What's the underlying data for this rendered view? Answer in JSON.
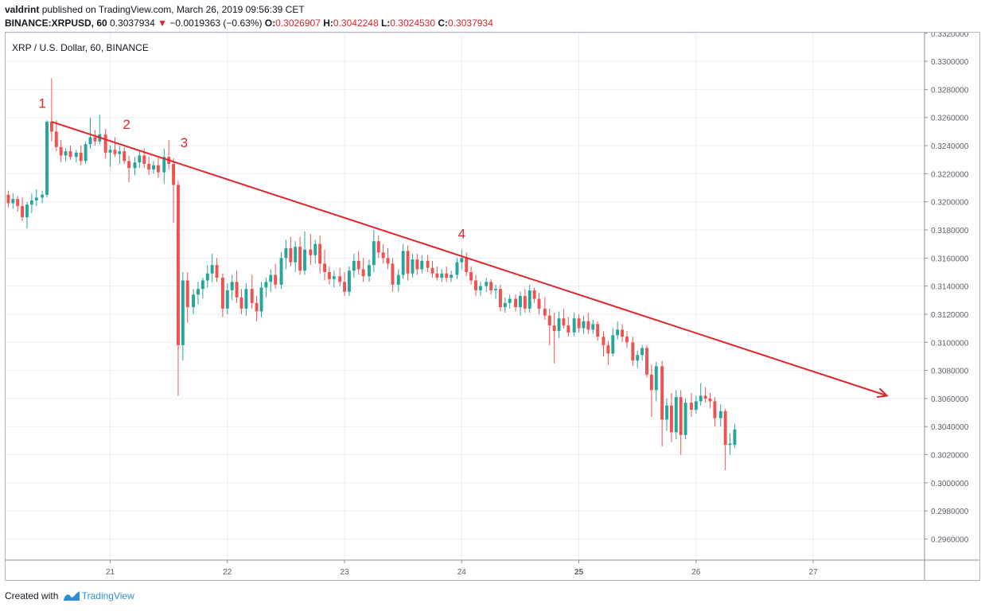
{
  "header": {
    "author": "valdrint",
    "published_text": "published on TradingView.com, March 26, 2019 09:56:39 CET",
    "symbol": "BINANCE:XRPUSD, 60",
    "last": "0.3037934",
    "change_arrow": "▼",
    "change": "−0.0019363 (−0.63%)",
    "o_label": "O:",
    "o_value": "0.3026907",
    "h_label": "H:",
    "h_value": "0.3042248",
    "l_label": "L:",
    "l_value": "0.3024530",
    "c_label": "C:",
    "c_value": "0.3037934"
  },
  "footer": {
    "created_with": "Created with",
    "brand": "TradingView",
    "logo_icon": "tradingview-logo-icon"
  },
  "colors": {
    "up": "#26a69a",
    "down": "#ef5350",
    "trendline": "#e0252b",
    "grid": "#e9eef4",
    "axis": "#8a8f99",
    "brand": "#2b8fd6"
  },
  "chart_data": {
    "type": "candlestick",
    "title": "XRP / U.S. Dollar, 60, BINANCE",
    "x_ticks": [
      "21",
      "22",
      "23",
      "24",
      "25",
      "26",
      "27"
    ],
    "bold_x_ticks": [
      "25"
    ],
    "y_ticks": [
      "0.3320000",
      "0.3300000",
      "0.3280000",
      "0.3260000",
      "0.3240000",
      "0.3220000",
      "0.3200000",
      "0.3180000",
      "0.3160000",
      "0.3140000",
      "0.3120000",
      "0.3100000",
      "0.3080000",
      "0.3060000",
      "0.3040000",
      "0.3020000",
      "0.3000000",
      "0.2980000",
      "0.2960000"
    ],
    "ylim": [
      0.2945,
      0.3321
    ],
    "xlim": [
      20.1,
      27.95
    ],
    "grid": true,
    "candle_width_days": 0.0267,
    "candles": [
      {
        "t": 20.13,
        "o": 0.3205,
        "h": 0.3208,
        "l": 0.3196,
        "c": 0.3199
      },
      {
        "t": 20.17,
        "o": 0.3199,
        "h": 0.3206,
        "l": 0.3195,
        "c": 0.3202
      },
      {
        "t": 20.21,
        "o": 0.3202,
        "h": 0.3204,
        "l": 0.3193,
        "c": 0.3197
      },
      {
        "t": 20.25,
        "o": 0.3197,
        "h": 0.3203,
        "l": 0.3186,
        "c": 0.3189
      },
      {
        "t": 20.29,
        "o": 0.3189,
        "h": 0.32,
        "l": 0.3181,
        "c": 0.3198
      },
      {
        "t": 20.33,
        "o": 0.3198,
        "h": 0.3206,
        "l": 0.3192,
        "c": 0.3201
      },
      {
        "t": 20.37,
        "o": 0.3201,
        "h": 0.3209,
        "l": 0.3197,
        "c": 0.3203
      },
      {
        "t": 20.42,
        "o": 0.3203,
        "h": 0.3208,
        "l": 0.3199,
        "c": 0.3205
      },
      {
        "t": 20.46,
        "o": 0.3205,
        "h": 0.3258,
        "l": 0.3203,
        "c": 0.3257
      },
      {
        "t": 20.5,
        "o": 0.3257,
        "h": 0.3288,
        "l": 0.3243,
        "c": 0.325
      },
      {
        "t": 20.54,
        "o": 0.325,
        "h": 0.3258,
        "l": 0.3236,
        "c": 0.3239
      },
      {
        "t": 20.58,
        "o": 0.3239,
        "h": 0.3244,
        "l": 0.3228,
        "c": 0.3233
      },
      {
        "t": 20.62,
        "o": 0.3233,
        "h": 0.3238,
        "l": 0.3229,
        "c": 0.3236
      },
      {
        "t": 20.66,
        "o": 0.3236,
        "h": 0.324,
        "l": 0.323,
        "c": 0.3232
      },
      {
        "t": 20.71,
        "o": 0.3232,
        "h": 0.3237,
        "l": 0.3228,
        "c": 0.3235
      },
      {
        "t": 20.75,
        "o": 0.3235,
        "h": 0.324,
        "l": 0.3226,
        "c": 0.3229
      },
      {
        "t": 20.79,
        "o": 0.3229,
        "h": 0.3243,
        "l": 0.3227,
        "c": 0.3241
      },
      {
        "t": 20.83,
        "o": 0.3241,
        "h": 0.326,
        "l": 0.3238,
        "c": 0.3246
      },
      {
        "t": 20.87,
        "o": 0.3246,
        "h": 0.3251,
        "l": 0.324,
        "c": 0.3243
      },
      {
        "t": 20.91,
        "o": 0.3243,
        "h": 0.3262,
        "l": 0.3241,
        "c": 0.3248
      },
      {
        "t": 20.96,
        "o": 0.3248,
        "h": 0.3252,
        "l": 0.3231,
        "c": 0.3235
      },
      {
        "t": 21.0,
        "o": 0.3235,
        "h": 0.324,
        "l": 0.3225,
        "c": 0.3237
      },
      {
        "t": 21.04,
        "o": 0.3237,
        "h": 0.3246,
        "l": 0.3232,
        "c": 0.3234
      },
      {
        "t": 21.08,
        "o": 0.3234,
        "h": 0.324,
        "l": 0.3227,
        "c": 0.3236
      },
      {
        "t": 21.12,
        "o": 0.3236,
        "h": 0.3239,
        "l": 0.3227,
        "c": 0.3229
      },
      {
        "t": 21.16,
        "o": 0.3229,
        "h": 0.3233,
        "l": 0.3214,
        "c": 0.3224
      },
      {
        "t": 21.21,
        "o": 0.3224,
        "h": 0.3232,
        "l": 0.3219,
        "c": 0.3228
      },
      {
        "t": 21.25,
        "o": 0.3228,
        "h": 0.3236,
        "l": 0.3224,
        "c": 0.3233
      },
      {
        "t": 21.29,
        "o": 0.3233,
        "h": 0.3238,
        "l": 0.3224,
        "c": 0.3227
      },
      {
        "t": 21.33,
        "o": 0.3227,
        "h": 0.3232,
        "l": 0.3219,
        "c": 0.3223
      },
      {
        "t": 21.37,
        "o": 0.3223,
        "h": 0.3229,
        "l": 0.322,
        "c": 0.3226
      },
      {
        "t": 21.41,
        "o": 0.3226,
        "h": 0.3232,
        "l": 0.3217,
        "c": 0.3221
      },
      {
        "t": 21.46,
        "o": 0.3221,
        "h": 0.3238,
        "l": 0.3213,
        "c": 0.3232
      },
      {
        "t": 21.5,
        "o": 0.3232,
        "h": 0.3244,
        "l": 0.3223,
        "c": 0.3227
      },
      {
        "t": 21.54,
        "o": 0.3227,
        "h": 0.3231,
        "l": 0.3185,
        "c": 0.3212
      },
      {
        "t": 21.58,
        "o": 0.3212,
        "h": 0.3215,
        "l": 0.3062,
        "c": 0.3098
      },
      {
        "t": 21.62,
        "o": 0.3098,
        "h": 0.315,
        "l": 0.3087,
        "c": 0.3144
      },
      {
        "t": 21.66,
        "o": 0.3144,
        "h": 0.315,
        "l": 0.3114,
        "c": 0.3125
      },
      {
        "t": 21.71,
        "o": 0.3125,
        "h": 0.3138,
        "l": 0.312,
        "c": 0.3134
      },
      {
        "t": 21.75,
        "o": 0.3134,
        "h": 0.3143,
        "l": 0.3127,
        "c": 0.3138
      },
      {
        "t": 21.79,
        "o": 0.3138,
        "h": 0.3146,
        "l": 0.3131,
        "c": 0.3144
      },
      {
        "t": 21.83,
        "o": 0.3144,
        "h": 0.3155,
        "l": 0.3139,
        "c": 0.3149
      },
      {
        "t": 21.87,
        "o": 0.3149,
        "h": 0.3163,
        "l": 0.3143,
        "c": 0.3155
      },
      {
        "t": 21.91,
        "o": 0.3155,
        "h": 0.316,
        "l": 0.3143,
        "c": 0.3146
      },
      {
        "t": 21.96,
        "o": 0.3146,
        "h": 0.3149,
        "l": 0.3118,
        "c": 0.3124
      },
      {
        "t": 22.0,
        "o": 0.3124,
        "h": 0.3142,
        "l": 0.312,
        "c": 0.3137
      },
      {
        "t": 22.04,
        "o": 0.3137,
        "h": 0.3148,
        "l": 0.313,
        "c": 0.3143
      },
      {
        "t": 22.08,
        "o": 0.3143,
        "h": 0.3151,
        "l": 0.3128,
        "c": 0.3132
      },
      {
        "t": 22.12,
        "o": 0.3132,
        "h": 0.3138,
        "l": 0.312,
        "c": 0.3124
      },
      {
        "t": 22.16,
        "o": 0.3124,
        "h": 0.3142,
        "l": 0.3119,
        "c": 0.3138
      },
      {
        "t": 22.21,
        "o": 0.3138,
        "h": 0.3148,
        "l": 0.3124,
        "c": 0.3128
      },
      {
        "t": 22.25,
        "o": 0.3128,
        "h": 0.3133,
        "l": 0.3115,
        "c": 0.3122
      },
      {
        "t": 22.29,
        "o": 0.3122,
        "h": 0.3143,
        "l": 0.3118,
        "c": 0.3139
      },
      {
        "t": 22.33,
        "o": 0.3139,
        "h": 0.3146,
        "l": 0.3132,
        "c": 0.3143
      },
      {
        "t": 22.37,
        "o": 0.3143,
        "h": 0.3152,
        "l": 0.3136,
        "c": 0.3148
      },
      {
        "t": 22.41,
        "o": 0.3148,
        "h": 0.3156,
        "l": 0.3138,
        "c": 0.3141
      },
      {
        "t": 22.46,
        "o": 0.3141,
        "h": 0.3164,
        "l": 0.3138,
        "c": 0.316
      },
      {
        "t": 22.5,
        "o": 0.316,
        "h": 0.3173,
        "l": 0.3152,
        "c": 0.3167
      },
      {
        "t": 22.54,
        "o": 0.3167,
        "h": 0.3175,
        "l": 0.3154,
        "c": 0.3157
      },
      {
        "t": 22.58,
        "o": 0.3157,
        "h": 0.3172,
        "l": 0.315,
        "c": 0.3168
      },
      {
        "t": 22.62,
        "o": 0.3168,
        "h": 0.3175,
        "l": 0.3148,
        "c": 0.3151
      },
      {
        "t": 22.66,
        "o": 0.3151,
        "h": 0.3179,
        "l": 0.3148,
        "c": 0.3166
      },
      {
        "t": 22.71,
        "o": 0.3166,
        "h": 0.3177,
        "l": 0.3155,
        "c": 0.3162
      },
      {
        "t": 22.75,
        "o": 0.3162,
        "h": 0.3173,
        "l": 0.3156,
        "c": 0.317
      },
      {
        "t": 22.79,
        "o": 0.317,
        "h": 0.3176,
        "l": 0.3149,
        "c": 0.3156
      },
      {
        "t": 22.83,
        "o": 0.3156,
        "h": 0.3166,
        "l": 0.3144,
        "c": 0.315
      },
      {
        "t": 22.87,
        "o": 0.315,
        "h": 0.3154,
        "l": 0.3141,
        "c": 0.3145
      },
      {
        "t": 22.91,
        "o": 0.3145,
        "h": 0.3151,
        "l": 0.3139,
        "c": 0.3147
      },
      {
        "t": 22.96,
        "o": 0.3147,
        "h": 0.3153,
        "l": 0.314,
        "c": 0.3143
      },
      {
        "t": 23.0,
        "o": 0.3143,
        "h": 0.315,
        "l": 0.3133,
        "c": 0.3136
      },
      {
        "t": 23.04,
        "o": 0.3136,
        "h": 0.3154,
        "l": 0.3133,
        "c": 0.3151
      },
      {
        "t": 23.08,
        "o": 0.3151,
        "h": 0.3163,
        "l": 0.3146,
        "c": 0.3158
      },
      {
        "t": 23.12,
        "o": 0.3158,
        "h": 0.3165,
        "l": 0.3148,
        "c": 0.3152
      },
      {
        "t": 23.16,
        "o": 0.3152,
        "h": 0.316,
        "l": 0.3143,
        "c": 0.3147
      },
      {
        "t": 23.21,
        "o": 0.3147,
        "h": 0.3159,
        "l": 0.3143,
        "c": 0.3155
      },
      {
        "t": 23.25,
        "o": 0.3155,
        "h": 0.318,
        "l": 0.315,
        "c": 0.3172
      },
      {
        "t": 23.29,
        "o": 0.3172,
        "h": 0.3176,
        "l": 0.316,
        "c": 0.3164
      },
      {
        "t": 23.33,
        "o": 0.3164,
        "h": 0.317,
        "l": 0.3156,
        "c": 0.316
      },
      {
        "t": 23.37,
        "o": 0.316,
        "h": 0.3167,
        "l": 0.3152,
        "c": 0.3156
      },
      {
        "t": 23.41,
        "o": 0.3156,
        "h": 0.316,
        "l": 0.3136,
        "c": 0.3141
      },
      {
        "t": 23.46,
        "o": 0.3141,
        "h": 0.3152,
        "l": 0.3136,
        "c": 0.3148
      },
      {
        "t": 23.5,
        "o": 0.3148,
        "h": 0.317,
        "l": 0.3145,
        "c": 0.3165
      },
      {
        "t": 23.54,
        "o": 0.3165,
        "h": 0.3169,
        "l": 0.3144,
        "c": 0.3149
      },
      {
        "t": 23.58,
        "o": 0.3149,
        "h": 0.3163,
        "l": 0.3146,
        "c": 0.3159
      },
      {
        "t": 23.62,
        "o": 0.3159,
        "h": 0.3163,
        "l": 0.3148,
        "c": 0.3152
      },
      {
        "t": 23.66,
        "o": 0.3152,
        "h": 0.3162,
        "l": 0.3149,
        "c": 0.3158
      },
      {
        "t": 23.71,
        "o": 0.3158,
        "h": 0.3162,
        "l": 0.315,
        "c": 0.3153
      },
      {
        "t": 23.75,
        "o": 0.3153,
        "h": 0.3158,
        "l": 0.3146,
        "c": 0.3149
      },
      {
        "t": 23.79,
        "o": 0.3149,
        "h": 0.3154,
        "l": 0.3144,
        "c": 0.3146
      },
      {
        "t": 23.83,
        "o": 0.3146,
        "h": 0.3152,
        "l": 0.3143,
        "c": 0.3149
      },
      {
        "t": 23.87,
        "o": 0.3149,
        "h": 0.3154,
        "l": 0.3143,
        "c": 0.3146
      },
      {
        "t": 23.91,
        "o": 0.3146,
        "h": 0.3151,
        "l": 0.3143,
        "c": 0.3148
      },
      {
        "t": 23.96,
        "o": 0.3148,
        "h": 0.316,
        "l": 0.3145,
        "c": 0.3157
      },
      {
        "t": 24.0,
        "o": 0.3157,
        "h": 0.3166,
        "l": 0.3152,
        "c": 0.316
      },
      {
        "t": 24.04,
        "o": 0.316,
        "h": 0.3164,
        "l": 0.3147,
        "c": 0.315
      },
      {
        "t": 24.08,
        "o": 0.315,
        "h": 0.3154,
        "l": 0.3141,
        "c": 0.3144
      },
      {
        "t": 24.12,
        "o": 0.3144,
        "h": 0.3148,
        "l": 0.3133,
        "c": 0.3137
      },
      {
        "t": 24.16,
        "o": 0.3137,
        "h": 0.3143,
        "l": 0.3133,
        "c": 0.314
      },
      {
        "t": 24.21,
        "o": 0.314,
        "h": 0.3146,
        "l": 0.3136,
        "c": 0.3143
      },
      {
        "t": 24.25,
        "o": 0.3143,
        "h": 0.3145,
        "l": 0.3134,
        "c": 0.3137
      },
      {
        "t": 24.29,
        "o": 0.3137,
        "h": 0.3141,
        "l": 0.3131,
        "c": 0.3138
      },
      {
        "t": 24.33,
        "o": 0.3138,
        "h": 0.3141,
        "l": 0.3122,
        "c": 0.3125
      },
      {
        "t": 24.37,
        "o": 0.3125,
        "h": 0.3132,
        "l": 0.3121,
        "c": 0.3128
      },
      {
        "t": 24.41,
        "o": 0.3128,
        "h": 0.3134,
        "l": 0.3124,
        "c": 0.3131
      },
      {
        "t": 24.46,
        "o": 0.3131,
        "h": 0.3134,
        "l": 0.3122,
        "c": 0.3125
      },
      {
        "t": 24.5,
        "o": 0.3125,
        "h": 0.3136,
        "l": 0.3119,
        "c": 0.3133
      },
      {
        "t": 24.54,
        "o": 0.3133,
        "h": 0.3138,
        "l": 0.3121,
        "c": 0.3124
      },
      {
        "t": 24.58,
        "o": 0.3124,
        "h": 0.3141,
        "l": 0.3121,
        "c": 0.3137
      },
      {
        "t": 24.62,
        "o": 0.3137,
        "h": 0.3139,
        "l": 0.3128,
        "c": 0.3131
      },
      {
        "t": 24.66,
        "o": 0.3131,
        "h": 0.3135,
        "l": 0.312,
        "c": 0.3124
      },
      {
        "t": 24.71,
        "o": 0.3124,
        "h": 0.3132,
        "l": 0.3116,
        "c": 0.3119
      },
      {
        "t": 24.75,
        "o": 0.3119,
        "h": 0.3124,
        "l": 0.3098,
        "c": 0.3112
      },
      {
        "t": 24.79,
        "o": 0.3112,
        "h": 0.3121,
        "l": 0.3085,
        "c": 0.3108
      },
      {
        "t": 24.83,
        "o": 0.3108,
        "h": 0.3122,
        "l": 0.3103,
        "c": 0.3117
      },
      {
        "t": 24.87,
        "o": 0.3117,
        "h": 0.3124,
        "l": 0.311,
        "c": 0.3112
      },
      {
        "t": 24.91,
        "o": 0.3112,
        "h": 0.3118,
        "l": 0.3104,
        "c": 0.3107
      },
      {
        "t": 24.96,
        "o": 0.3107,
        "h": 0.3121,
        "l": 0.3104,
        "c": 0.3117
      },
      {
        "t": 25.0,
        "o": 0.3117,
        "h": 0.312,
        "l": 0.3107,
        "c": 0.311
      },
      {
        "t": 25.04,
        "o": 0.311,
        "h": 0.3119,
        "l": 0.3106,
        "c": 0.3115
      },
      {
        "t": 25.08,
        "o": 0.3115,
        "h": 0.3121,
        "l": 0.3106,
        "c": 0.3109
      },
      {
        "t": 25.12,
        "o": 0.3109,
        "h": 0.3116,
        "l": 0.3106,
        "c": 0.3113
      },
      {
        "t": 25.16,
        "o": 0.3113,
        "h": 0.3115,
        "l": 0.3101,
        "c": 0.3104
      },
      {
        "t": 25.21,
        "o": 0.3104,
        "h": 0.3108,
        "l": 0.309,
        "c": 0.3098
      },
      {
        "t": 25.25,
        "o": 0.3098,
        "h": 0.3101,
        "l": 0.3084,
        "c": 0.3092
      },
      {
        "t": 25.29,
        "o": 0.3092,
        "h": 0.311,
        "l": 0.309,
        "c": 0.3105
      },
      {
        "t": 25.33,
        "o": 0.3105,
        "h": 0.3115,
        "l": 0.3102,
        "c": 0.3109
      },
      {
        "t": 25.37,
        "o": 0.3109,
        "h": 0.3113,
        "l": 0.31,
        "c": 0.3104
      },
      {
        "t": 25.41,
        "o": 0.3104,
        "h": 0.3108,
        "l": 0.3096,
        "c": 0.31
      },
      {
        "t": 25.46,
        "o": 0.31,
        "h": 0.3104,
        "l": 0.3083,
        "c": 0.3087
      },
      {
        "t": 25.5,
        "o": 0.3087,
        "h": 0.3094,
        "l": 0.3082,
        "c": 0.3091
      },
      {
        "t": 25.54,
        "o": 0.3091,
        "h": 0.3098,
        "l": 0.3087,
        "c": 0.3096
      },
      {
        "t": 25.58,
        "o": 0.3096,
        "h": 0.3098,
        "l": 0.3075,
        "c": 0.3077
      },
      {
        "t": 25.62,
        "o": 0.3077,
        "h": 0.3084,
        "l": 0.3047,
        "c": 0.3066
      },
      {
        "t": 25.66,
        "o": 0.3066,
        "h": 0.3086,
        "l": 0.3058,
        "c": 0.3083
      },
      {
        "t": 25.71,
        "o": 0.3083,
        "h": 0.3087,
        "l": 0.3026,
        "c": 0.3045
      },
      {
        "t": 25.75,
        "o": 0.3045,
        "h": 0.306,
        "l": 0.3037,
        "c": 0.3055
      },
      {
        "t": 25.79,
        "o": 0.3055,
        "h": 0.3064,
        "l": 0.3029,
        "c": 0.3036
      },
      {
        "t": 25.83,
        "o": 0.3036,
        "h": 0.3066,
        "l": 0.3031,
        "c": 0.3061
      },
      {
        "t": 25.87,
        "o": 0.3061,
        "h": 0.3066,
        "l": 0.302,
        "c": 0.3034
      },
      {
        "t": 25.91,
        "o": 0.3034,
        "h": 0.306,
        "l": 0.3031,
        "c": 0.3057
      },
      {
        "t": 25.96,
        "o": 0.3057,
        "h": 0.3064,
        "l": 0.3047,
        "c": 0.3052
      },
      {
        "t": 26.0,
        "o": 0.3052,
        "h": 0.3062,
        "l": 0.3049,
        "c": 0.3058
      },
      {
        "t": 26.04,
        "o": 0.3058,
        "h": 0.3071,
        "l": 0.3055,
        "c": 0.3062
      },
      {
        "t": 26.08,
        "o": 0.3062,
        "h": 0.3068,
        "l": 0.3057,
        "c": 0.306
      },
      {
        "t": 26.12,
        "o": 0.306,
        "h": 0.3064,
        "l": 0.3053,
        "c": 0.3058
      },
      {
        "t": 26.16,
        "o": 0.3058,
        "h": 0.3061,
        "l": 0.304,
        "c": 0.3046
      },
      {
        "t": 26.21,
        "o": 0.3046,
        "h": 0.3056,
        "l": 0.304,
        "c": 0.3051
      },
      {
        "t": 26.25,
        "o": 0.3051,
        "h": 0.3053,
        "l": 0.3009,
        "c": 0.3027
      },
      {
        "t": 26.29,
        "o": 0.3027,
        "h": 0.3035,
        "l": 0.302,
        "c": 0.3028
      },
      {
        "t": 26.33,
        "o": 0.3027,
        "h": 0.3042,
        "l": 0.3025,
        "c": 0.3038
      }
    ],
    "trendline": {
      "start": {
        "t": 20.5,
        "price": 0.3257
      },
      "end": {
        "t": 27.63,
        "price": 0.3062
      },
      "arrow": true
    },
    "annotations": [
      {
        "label": "1",
        "t": 20.42,
        "price": 0.3267
      },
      {
        "label": "2",
        "t": 21.14,
        "price": 0.3252
      },
      {
        "label": "3",
        "t": 21.63,
        "price": 0.3239
      },
      {
        "label": "4",
        "t": 24.0,
        "price": 0.3174
      }
    ]
  }
}
